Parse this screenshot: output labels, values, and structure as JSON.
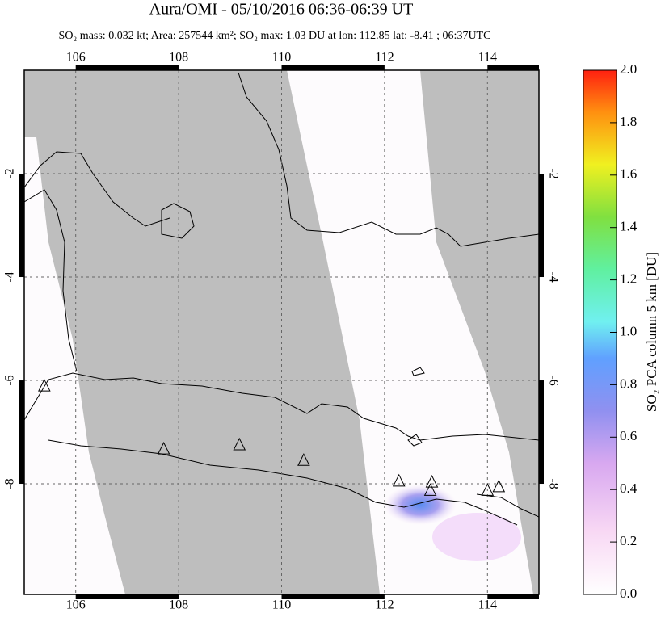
{
  "chart_data": {
    "type": "map",
    "title": "Aura/OMI - 05/10/2016 06:36-06:39 UT",
    "subtitle": "SO₂ mass: 0.032 kt; Area: 257544 km²; SO₂ max: 1.03 DU at lon: 112.85 lat: -8.41 ; 06:37UTC",
    "xlim": [
      105,
      115
    ],
    "ylim": [
      -10.14,
      0
    ],
    "xticks": [
      106,
      108,
      110,
      112,
      114
    ],
    "yticks": [
      -2,
      -4,
      -6,
      -8
    ],
    "grid": true,
    "volcanoes": {
      "x": [
        105.39,
        107.71,
        109.18,
        110.43,
        112.28,
        112.92,
        112.89,
        114.0,
        114.22
      ],
      "y": [
        -6.11,
        -7.33,
        -7.25,
        -7.55,
        -7.95,
        -7.97,
        -8.13,
        -8.13,
        -8.06
      ]
    },
    "colorbar": {
      "label": "SO₂ PCA column 5 km [DU]",
      "lim": [
        0,
        2
      ],
      "ticks": [
        {
          "value": 0,
          "label": "0.0"
        },
        {
          "value": 0.2,
          "label": "0.2"
        },
        {
          "value": 0.4,
          "label": "0.4"
        },
        {
          "value": 0.6,
          "label": "0.6"
        },
        {
          "value": 0.8,
          "label": "0.8"
        },
        {
          "value": 1,
          "label": "1.0"
        },
        {
          "value": 1.2,
          "label": "1.2"
        },
        {
          "value": 1.4,
          "label": "1.4"
        },
        {
          "value": 1.6,
          "label": "1.6"
        },
        {
          "value": 1.8,
          "label": "1.8"
        },
        {
          "value": 2,
          "label": "2.0"
        }
      ]
    }
  }
}
